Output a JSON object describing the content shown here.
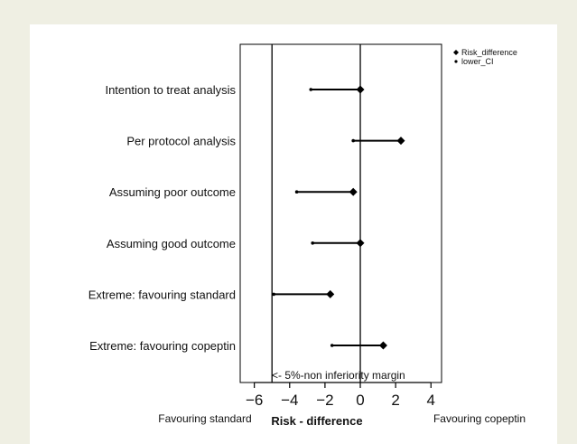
{
  "chart_data": {
    "type": "scatter",
    "title": "",
    "xlabel": "Risk - difference",
    "ylabel": "",
    "xlim": [
      -6.8,
      4.6
    ],
    "xticks": [
      -6,
      -4,
      -2,
      0,
      2,
      4
    ],
    "grid": false,
    "legend_position": "top-right",
    "categories": [
      "Intention to treat analysis",
      "Per protocol analysis",
      "Assuming poor outcome",
      "Assuming good outcome",
      "Extreme: favouring standard",
      "Extreme: favouring  copeptin"
    ],
    "series": [
      {
        "name": "Risk_difference",
        "marker": "diamond",
        "values": [
          0.0,
          2.3,
          -0.4,
          0.0,
          -1.7,
          1.3
        ]
      },
      {
        "name": "lower_CI",
        "marker": "dot",
        "values": [
          -2.8,
          -0.4,
          -3.6,
          -2.7,
          -4.9,
          -1.6
        ]
      }
    ],
    "reference_lines": [
      {
        "x": 0
      },
      {
        "x": -5,
        "label": "<- 5%-non inferiority margin"
      }
    ],
    "annotations": {
      "left": "Favouring standard",
      "right": "Favouring  copeptin"
    }
  }
}
